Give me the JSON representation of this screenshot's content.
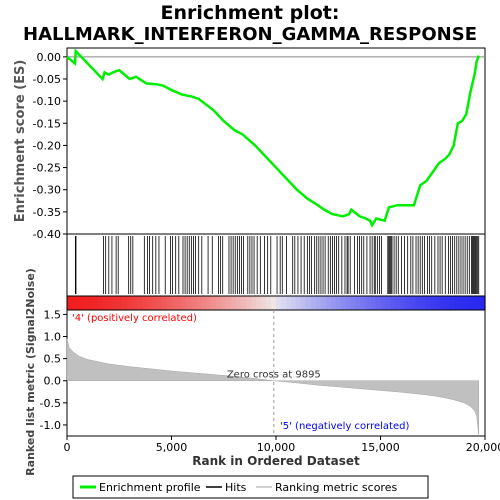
{
  "chart_data": {
    "title_line1": "Enrichment plot:",
    "title_line2": "HALLMARK_INTERFERON_GAMMA_RESPONSE",
    "type": "line",
    "top_panel": {
      "ylabel": "Enrichment score (ES)",
      "ylim": [
        -0.4,
        0.02
      ],
      "yticks": [
        0.0,
        -0.05,
        -0.1,
        -0.15,
        -0.2,
        -0.25,
        -0.3,
        -0.35,
        -0.4
      ],
      "ytick_labels": [
        "0.00",
        "-0.05",
        "-0.10",
        "-0.15",
        "-0.20",
        "-0.25",
        "-0.30",
        "-0.35",
        "-0.40"
      ],
      "series": [
        {
          "name": "Enrichment profile",
          "color": "#00ee00",
          "x": [
            0,
            380,
            420,
            1700,
            1800,
            2000,
            2200,
            2500,
            3000,
            3300,
            3800,
            4300,
            4600,
            5000,
            5500,
            6000,
            6300,
            7000,
            7500,
            8000,
            8400,
            9000,
            9500,
            10000,
            10500,
            11000,
            11500,
            12000,
            12300,
            12700,
            13200,
            13500,
            13600,
            14000,
            14300,
            14500,
            14600,
            14800,
            15200,
            15400,
            15800,
            16200,
            16600,
            16900,
            17200,
            17500,
            17800,
            18100,
            18300,
            18500,
            18700,
            18900,
            19100,
            19300,
            19500,
            19600,
            19700
          ],
          "y": [
            0.0,
            -0.015,
            0.013,
            -0.05,
            -0.035,
            -0.04,
            -0.035,
            -0.03,
            -0.05,
            -0.045,
            -0.06,
            -0.062,
            -0.065,
            -0.075,
            -0.085,
            -0.09,
            -0.095,
            -0.12,
            -0.145,
            -0.165,
            -0.175,
            -0.2,
            -0.225,
            -0.25,
            -0.275,
            -0.3,
            -0.32,
            -0.335,
            -0.345,
            -0.355,
            -0.36,
            -0.355,
            -0.345,
            -0.36,
            -0.365,
            -0.37,
            -0.38,
            -0.365,
            -0.37,
            -0.34,
            -0.335,
            -0.335,
            -0.335,
            -0.29,
            -0.28,
            -0.26,
            -0.24,
            -0.23,
            -0.22,
            -0.2,
            -0.15,
            -0.145,
            -0.13,
            -0.08,
            -0.04,
            -0.01,
            0.003
          ]
        }
      ]
    },
    "hits_panel": {
      "series_name": "Hits",
      "hit_ranks": [
        400,
        430,
        1750,
        1850,
        2000,
        2150,
        2350,
        2450,
        2950,
        3050,
        3150,
        3700,
        3850,
        3950,
        4100,
        4250,
        4400,
        4700,
        4950,
        5050,
        5200,
        5350,
        5550,
        5650,
        5750,
        5850,
        5950,
        6050,
        6150,
        6300,
        6450,
        6750,
        6950,
        7250,
        7350,
        7450,
        7750,
        7850,
        7950,
        8050,
        8150,
        8250,
        8350,
        8450,
        8650,
        8750,
        8850,
        8950,
        9100,
        9250,
        9450,
        9600,
        9750,
        10050,
        10200,
        10300,
        10500,
        10800,
        10900,
        11050,
        11200,
        11350,
        11500,
        11600,
        11700,
        11850,
        11950,
        12050,
        12150,
        12250,
        12350,
        12500,
        12600,
        12700,
        12800,
        12900,
        13000,
        13150,
        13300,
        13400,
        13450,
        13550,
        13750,
        13900,
        14000,
        14100,
        14200,
        14350,
        14500,
        14600,
        14700,
        14750,
        14850,
        14950,
        15050,
        15350,
        15400,
        15450,
        15500,
        15550,
        15650,
        15750,
        15850,
        16000,
        16150,
        16300,
        16450,
        16550,
        16700,
        16800,
        16900,
        17000,
        17100,
        17250,
        17350,
        17450,
        17600,
        17750,
        17850,
        17950,
        18100,
        18250,
        18350,
        18450,
        18550,
        18650,
        18750,
        18850,
        18950,
        19050,
        19150,
        19250,
        19350,
        19400,
        19450,
        19500,
        19550,
        19600,
        19650,
        19700
      ]
    },
    "bottom_panel": {
      "series_name": "Ranking metric scores",
      "ylabel": "Ranked list metric (Signal2Noise)",
      "xlabel": "Rank in Ordered Dataset",
      "ylim": [
        -1.25,
        1.6
      ],
      "yticks": [
        1.5,
        1.0,
        0.5,
        0.0,
        -0.5,
        -1.0
      ],
      "ytick_labels": [
        "1.5",
        "1.0",
        "0.5",
        "0.0",
        "-0.5",
        "-1.0"
      ],
      "xlim": [
        0,
        20000
      ],
      "xticks": [
        0,
        5000,
        10000,
        15000,
        20000
      ],
      "xtick_labels": [
        "0",
        "5,000",
        "10,000",
        "15,000",
        "20,000"
      ],
      "metric_x": [
        0,
        100,
        300,
        600,
        1000,
        1500,
        2000,
        3000,
        4000,
        5000,
        6000,
        7000,
        8000,
        9000,
        9895,
        11000,
        12000,
        13000,
        14000,
        15000,
        16000,
        17000,
        17500,
        18000,
        18500,
        19000,
        19300,
        19500,
        19600,
        19650,
        19700
      ],
      "metric_y": [
        0.95,
        0.75,
        0.65,
        0.55,
        0.48,
        0.43,
        0.38,
        0.32,
        0.27,
        0.22,
        0.18,
        0.14,
        0.1,
        0.05,
        0.0,
        -0.05,
        -0.1,
        -0.14,
        -0.18,
        -0.22,
        -0.26,
        -0.31,
        -0.34,
        -0.38,
        -0.43,
        -0.5,
        -0.58,
        -0.68,
        -0.8,
        -1.0,
        -1.25
      ],
      "zero_cross_label": "Zero cross at 9895",
      "zero_cross_x": 9895,
      "pos_label": "'4' (positively correlated)",
      "neg_label": "'5' (negatively correlated)"
    },
    "legend": {
      "items": [
        {
          "label": "Enrichment profile",
          "color": "#00ee00"
        },
        {
          "label": "Hits",
          "color": "#000000"
        },
        {
          "label": "Ranking metric scores",
          "color": "#c0c0c0"
        }
      ]
    },
    "colors": {
      "profile": "#00ee00",
      "metric_fill": "#c0c0c0",
      "pos_label": "#ff0000",
      "neg_label": "#0000ff"
    }
  }
}
